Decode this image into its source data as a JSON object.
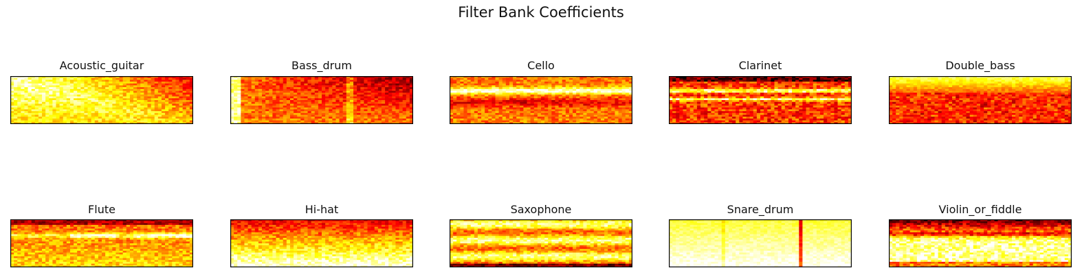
{
  "title": "Filter Bank Coefficients",
  "chart_data": {
    "type": "heatmap",
    "title": "Filter Bank Coefficients",
    "colormap": "hot",
    "axes_visible": false,
    "grid": false,
    "layout": {
      "rows": 2,
      "cols": 5
    },
    "panels": [
      {
        "title": "Acoustic_guitar",
        "profile": "decay-diagonal"
      },
      {
        "title": "Bass_drum",
        "profile": "dark-transient"
      },
      {
        "title": "Cello",
        "profile": "bright-band"
      },
      {
        "title": "Clarinet",
        "profile": "harmonic-lines"
      },
      {
        "title": "Double_bass",
        "profile": "top-bright-vertical-stripes"
      },
      {
        "title": "Flute",
        "profile": "segmented-notes"
      },
      {
        "title": "Hi-hat",
        "profile": "bright-lower"
      },
      {
        "title": "Saxophone",
        "profile": "multi-band"
      },
      {
        "title": "Snare_drum",
        "profile": "bright-segments"
      },
      {
        "title": "Violin_or_fiddle",
        "profile": "dark-top-bands"
      }
    ]
  }
}
